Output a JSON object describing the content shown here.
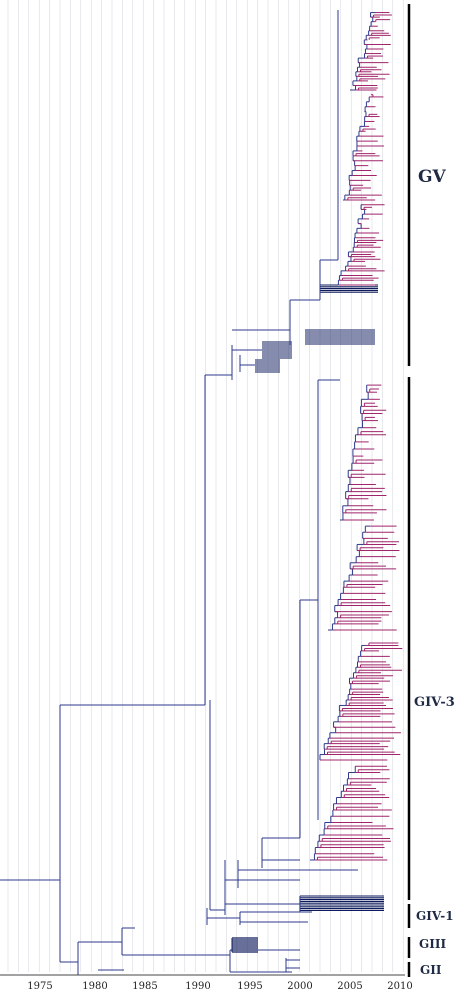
{
  "axis": {
    "ticks": [
      "1975",
      "1980",
      "1985",
      "1990",
      "1995",
      "2000",
      "2005",
      "2010"
    ]
  },
  "clades": [
    {
      "id": "gv",
      "label": "GV"
    },
    {
      "id": "giv3",
      "label": "GIV-3"
    },
    {
      "id": "giv1",
      "label": "GIV-1"
    },
    {
      "id": "giii",
      "label": "GIII"
    },
    {
      "id": "gii",
      "label": "GII"
    }
  ],
  "colors": {
    "background": "#ffffff",
    "gridline": "#cfd3da",
    "backbone_branch": "#2e3a8c",
    "tip_branch": "#a0256a",
    "dense_tip": "#0d1a5c",
    "clade_bar": "#000000",
    "label_text": "#1f2a44"
  }
}
